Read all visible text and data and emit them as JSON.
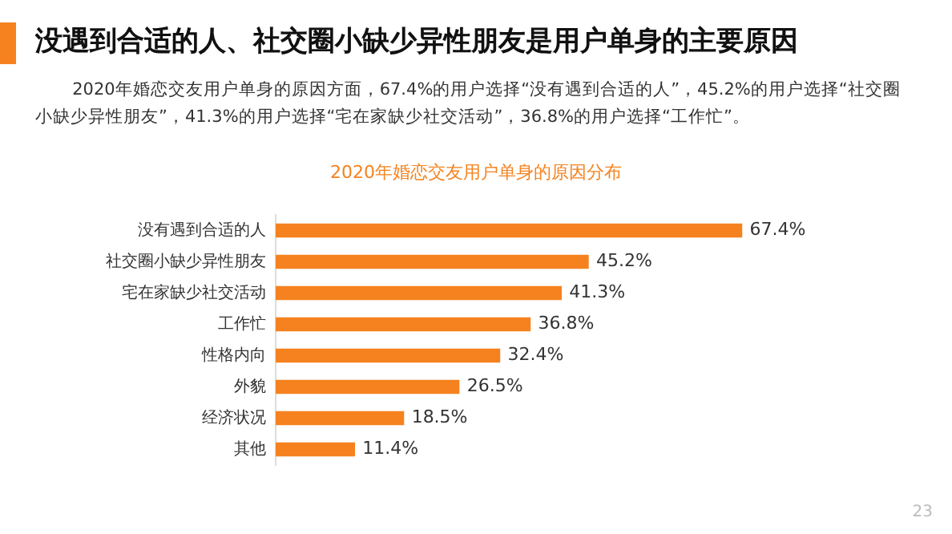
{
  "chart_data": {
    "type": "bar",
    "orientation": "horizontal",
    "title": "没遇到合适的人、社交圈小缺少异性朋友是用户单身的主要原因",
    "subtitle": "2020年婚恋交友用户单身的原因方面，67.4%的用户选择“没有遇到合适的人”，45.2%的用户选择“社交圈小缺少异性朋友”，41.3%的用户选择“宅在家缺少社交活动”，36.8%的用户选择“工作忙”。",
    "annotations": [
      "2020年婚恋交友用户单身的原因分布",
      "23"
    ],
    "categories": [
      "没有遇到合适的人",
      "社交圈小缺少异性朋友",
      "宅在家缺少社交活动",
      "工作忙",
      "性格内向",
      "外貌",
      "经济状况",
      "其他"
    ],
    "values": [
      67.4,
      45.2,
      41.3,
      36.8,
      32.4,
      26.5,
      18.5,
      11.4
    ],
    "value_labels": [
      "67.4%",
      "45.2%",
      "41.3%",
      "36.8%",
      "32.4%",
      "26.5%",
      "18.5%",
      "11.4%"
    ],
    "color": "#f5821f",
    "tick_labels": "y",
    "legend": false
  }
}
